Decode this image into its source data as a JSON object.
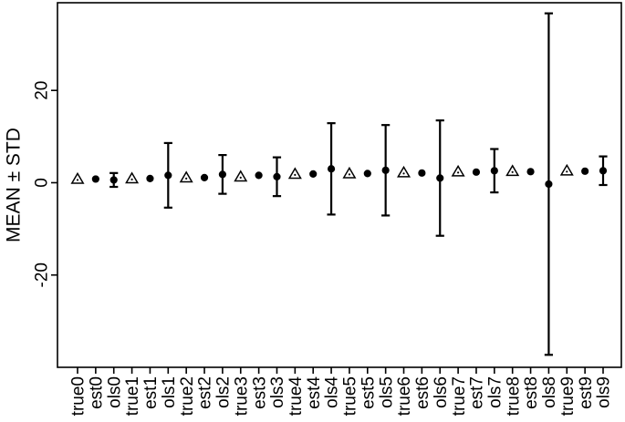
{
  "figure": {
    "background": "#ffffff",
    "foreground": "#000000"
  },
  "chart_data": {
    "type": "scatter",
    "title": "",
    "xlabel": "",
    "ylabel": "MEAN ± STD",
    "ylim": [
      -40,
      39
    ],
    "yticks": [
      -20,
      0,
      20
    ],
    "grid": false,
    "legend": "none",
    "x_label_rotation_degrees": 90,
    "marker_meaning": {
      "true": "open triangle with small center dot",
      "est": "filled black circle",
      "ols": "filled black circle with vertical error bar of one std"
    },
    "categories": [
      "true0",
      "est0",
      "ols0",
      "true1",
      "est1",
      "ols1",
      "true2",
      "est2",
      "ols2",
      "true3",
      "est3",
      "ols3",
      "true4",
      "est4",
      "ols4",
      "true5",
      "est5",
      "ols5",
      "true6",
      "est6",
      "ols6",
      "true7",
      "est7",
      "ols7",
      "true8",
      "est8",
      "ols8",
      "true9",
      "est9",
      "ols9"
    ],
    "points": [
      {
        "label": "true0",
        "marker": "triangle",
        "mean": 0.8,
        "std": 0
      },
      {
        "label": "est0",
        "marker": "circle",
        "mean": 0.8,
        "std": 0
      },
      {
        "label": "ols0",
        "marker": "circle-errorbar",
        "mean": 0.6,
        "std": 1.5
      },
      {
        "label": "true1",
        "marker": "triangle",
        "mean": 0.9,
        "std": 0
      },
      {
        "label": "est1",
        "marker": "circle",
        "mean": 0.9,
        "std": 0
      },
      {
        "label": "ols1",
        "marker": "circle-errorbar",
        "mean": 1.6,
        "std": 7.0
      },
      {
        "label": "true2",
        "marker": "triangle",
        "mean": 1.1,
        "std": 0
      },
      {
        "label": "est2",
        "marker": "circle",
        "mean": 1.1,
        "std": 0
      },
      {
        "label": "ols2",
        "marker": "circle-errorbar",
        "mean": 1.8,
        "std": 4.2
      },
      {
        "label": "true3",
        "marker": "triangle",
        "mean": 1.3,
        "std": 0
      },
      {
        "label": "est3",
        "marker": "circle",
        "mean": 1.6,
        "std": 0
      },
      {
        "label": "ols3",
        "marker": "circle-errorbar",
        "mean": 1.3,
        "std": 4.2
      },
      {
        "label": "true4",
        "marker": "triangle",
        "mean": 1.9,
        "std": 0
      },
      {
        "label": "est4",
        "marker": "circle",
        "mean": 1.9,
        "std": 0
      },
      {
        "label": "ols4",
        "marker": "circle-errorbar",
        "mean": 3.0,
        "std": 9.9
      },
      {
        "label": "true5",
        "marker": "triangle",
        "mean": 2.0,
        "std": 0
      },
      {
        "label": "est5",
        "marker": "circle",
        "mean": 2.0,
        "std": 0
      },
      {
        "label": "ols5",
        "marker": "circle-errorbar",
        "mean": 2.7,
        "std": 9.8
      },
      {
        "label": "true6",
        "marker": "triangle",
        "mean": 2.2,
        "std": 0
      },
      {
        "label": "est6",
        "marker": "circle",
        "mean": 2.1,
        "std": 0
      },
      {
        "label": "ols6",
        "marker": "circle-errorbar",
        "mean": 1.0,
        "std": 12.5
      },
      {
        "label": "true7",
        "marker": "triangle",
        "mean": 2.4,
        "std": 0
      },
      {
        "label": "est7",
        "marker": "circle",
        "mean": 2.3,
        "std": 0
      },
      {
        "label": "ols7",
        "marker": "circle-errorbar",
        "mean": 2.6,
        "std": 4.7
      },
      {
        "label": "true8",
        "marker": "triangle",
        "mean": 2.5,
        "std": 0
      },
      {
        "label": "est8",
        "marker": "circle",
        "mean": 2.4,
        "std": 0
      },
      {
        "label": "ols8",
        "marker": "circle-errorbar",
        "mean": -0.3,
        "std": 37.0
      },
      {
        "label": "true9",
        "marker": "triangle",
        "mean": 2.6,
        "std": 0
      },
      {
        "label": "est9",
        "marker": "circle",
        "mean": 2.5,
        "std": 0
      },
      {
        "label": "ols9",
        "marker": "circle-errorbar",
        "mean": 2.6,
        "std": 3.1
      }
    ]
  }
}
